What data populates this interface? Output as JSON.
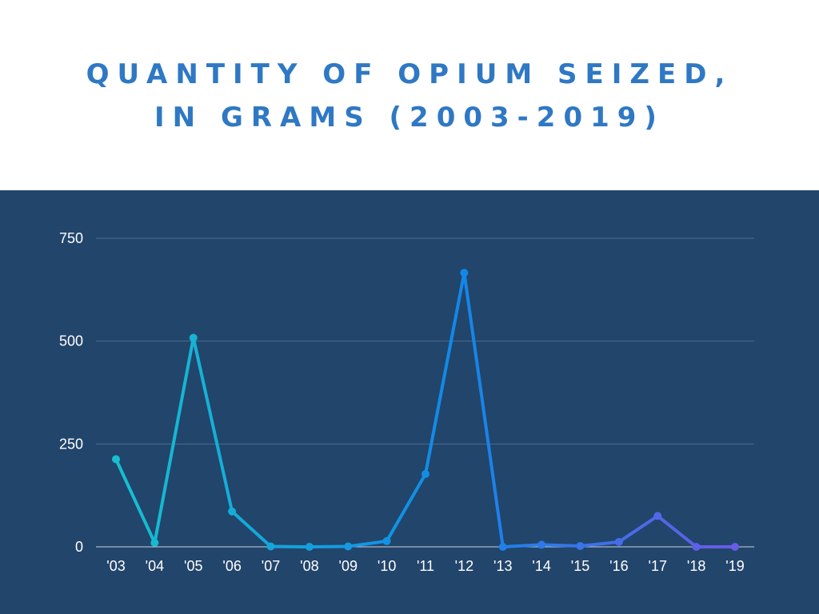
{
  "title": "QUANTITY OF OPIUM SEIZED, IN GRAMS (2003-2019)",
  "colors": {
    "background": "#22456b",
    "header_background": "#ffffff",
    "title": "#2f78c4",
    "gridline": "#4d6b8e",
    "line_start": "#17bfcf",
    "line_mid": "#1188e8",
    "line_end": "#6a5ae8"
  },
  "chart_data": {
    "type": "line",
    "title": "QUANTITY OF OPIUM SEIZED, IN GRAMS (2003-2019)",
    "xlabel": "",
    "ylabel": "",
    "categories": [
      "'03",
      "'04",
      "'05",
      "'06",
      "'07",
      "'08",
      "'09",
      "'10",
      "'11",
      "'12",
      "'13",
      "'14",
      "'15",
      "'16",
      "'17",
      "'18",
      "'19"
    ],
    "values": [
      213,
      10,
      508,
      86,
      1,
      0,
      1,
      14,
      177,
      666,
      0,
      5,
      2,
      12,
      75,
      0,
      0
    ],
    "ylim": [
      0,
      750
    ],
    "yticks": [
      "0",
      "250",
      "500",
      "750"
    ],
    "grid": true,
    "legend": "none"
  }
}
